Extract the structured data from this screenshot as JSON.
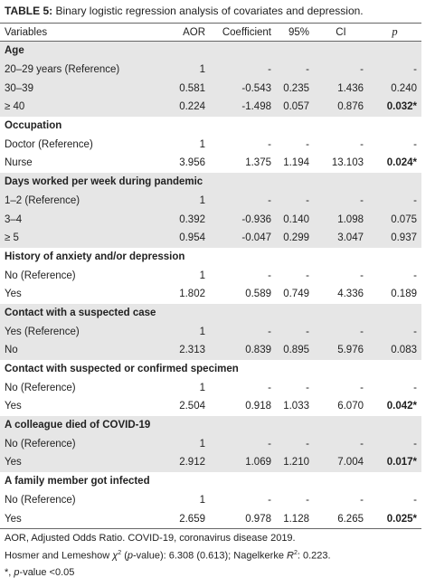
{
  "title": {
    "label": "TABLE 5:",
    "text": "Binary logistic regression analysis of covariates and depression."
  },
  "columns": [
    "Variables",
    "AOR",
    "Coefficient",
    "95%",
    "CI",
    "p"
  ],
  "groups": [
    {
      "heading": "Age",
      "rows": [
        [
          "20–29 years (Reference)",
          "1",
          "-",
          "-",
          "-",
          "-"
        ],
        [
          "30–39",
          "0.581",
          "-0.543",
          "0.235",
          "1.436",
          "0.240"
        ],
        [
          "≥ 40",
          "0.224",
          "-1.498",
          "0.057",
          "0.876",
          "0.032*"
        ]
      ]
    },
    {
      "heading": "Occupation",
      "rows": [
        [
          "Doctor (Reference)",
          "1",
          "-",
          "-",
          "-",
          "-"
        ],
        [
          "Nurse",
          "3.956",
          "1.375",
          "1.194",
          "13.103",
          "0.024*"
        ]
      ]
    },
    {
      "heading": "Days worked per week during pandemic",
      "rows": [
        [
          "1–2 (Reference)",
          "1",
          "-",
          "-",
          "-",
          "-"
        ],
        [
          "3–4",
          "0.392",
          "-0.936",
          "0.140",
          "1.098",
          "0.075"
        ],
        [
          "≥ 5",
          "0.954",
          "-0.047",
          "0.299",
          "3.047",
          "0.937"
        ]
      ]
    },
    {
      "heading": "History of anxiety and/or depression",
      "rows": [
        [
          "No (Reference)",
          "1",
          "-",
          "-",
          "-",
          "-"
        ],
        [
          "Yes",
          "1.802",
          "0.589",
          "0.749",
          "4.336",
          "0.189"
        ]
      ]
    },
    {
      "heading": "Contact with a suspected case",
      "rows": [
        [
          "Yes (Reference)",
          "1",
          "-",
          "-",
          "-",
          "-"
        ],
        [
          "No",
          "2.313",
          "0.839",
          "0.895",
          "5.976",
          "0.083"
        ]
      ]
    },
    {
      "heading": "Contact with suspected or confirmed specimen",
      "rows": [
        [
          "No (Reference)",
          "1",
          "-",
          "-",
          "-",
          "-"
        ],
        [
          "Yes",
          "2.504",
          "0.918",
          "1.033",
          "6.070",
          "0.042*"
        ]
      ]
    },
    {
      "heading": "A colleague died of COVID-19",
      "rows": [
        [
          "No (Reference)",
          "1",
          "-",
          "-",
          "-",
          "-"
        ],
        [
          "Yes",
          "2.912",
          "1.069",
          "1.210",
          "7.004",
          "0.017*"
        ]
      ]
    },
    {
      "heading": "A family member got infected",
      "rows": [
        [
          "No (Reference)",
          "1",
          "-",
          "-",
          "-",
          "-"
        ],
        [
          "Yes",
          "2.659",
          "0.978",
          "1.128",
          "6.265",
          "0.025*"
        ]
      ]
    }
  ],
  "footnotes": {
    "abbrev": "AOR, Adjusted Odds Ratio. COVID-19, coronavirus disease 2019.",
    "hosmer": [
      "Hosmer and Lemeshow ",
      "χ",
      "2",
      " (",
      "p",
      "-value): 6.308 (0.613); Nagelkerke ",
      "R",
      "2",
      ": 0.223."
    ],
    "sig": [
      "*, ",
      "p",
      "-value <0.05"
    ]
  }
}
